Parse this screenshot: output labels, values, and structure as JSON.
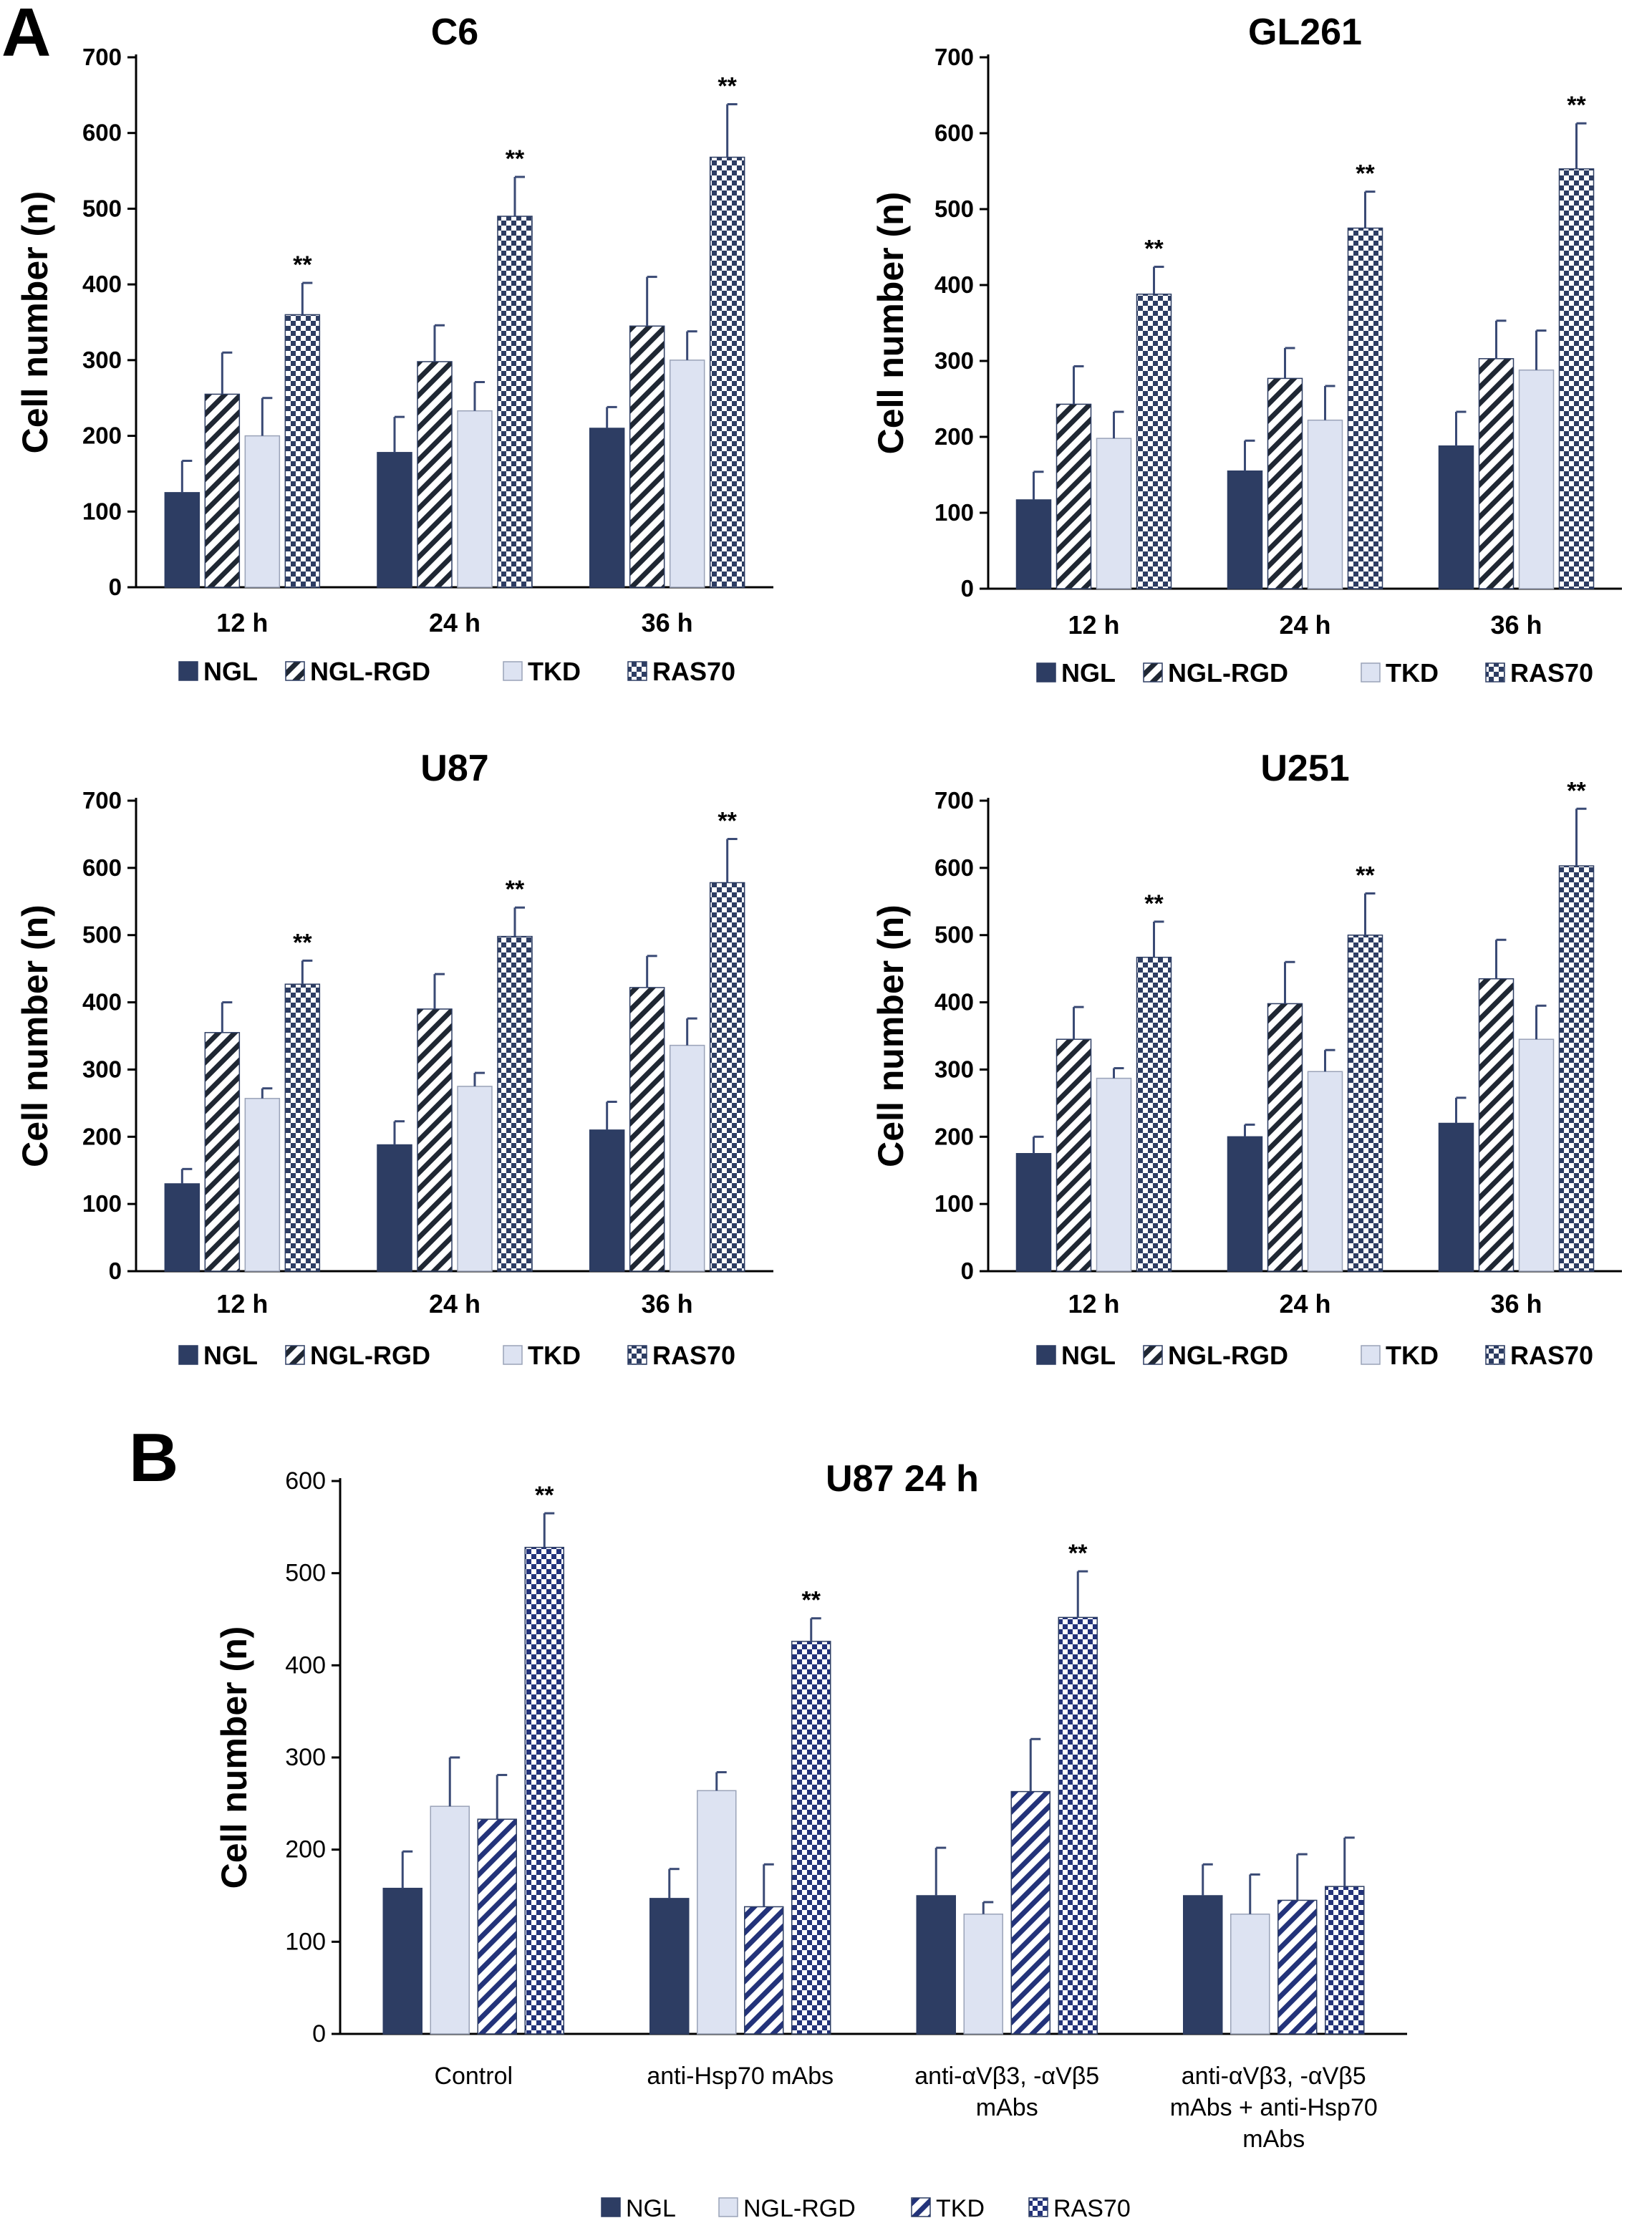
{
  "panel_labels": {
    "a": "A",
    "b": "B"
  },
  "colors": {
    "navy": "#2d3d63",
    "light": "#dde3f2",
    "pattern_blue": "#23337a",
    "axis": "#000000",
    "error": "#3a4a75"
  },
  "chart_data": [
    {
      "id": "C6",
      "panel": "A",
      "type": "bar",
      "title": "C6",
      "ylabel": "Cell number (n)",
      "ylim": [
        0,
        700
      ],
      "yticks": [
        "0",
        "100",
        "200",
        "300",
        "400",
        "500",
        "600",
        "700"
      ],
      "categories": [
        "12 h",
        "24 h",
        "36 h"
      ],
      "series": [
        {
          "name": "NGL",
          "style": "solid-navy",
          "values": [
            125,
            178,
            210
          ],
          "errors": [
            42,
            47,
            28
          ]
        },
        {
          "name": "NGL-RGD",
          "style": "diag-hatch",
          "values": [
            255,
            298,
            345
          ],
          "errors": [
            55,
            48,
            65
          ]
        },
        {
          "name": "TKD",
          "style": "light",
          "values": [
            200,
            233,
            300
          ],
          "errors": [
            50,
            38,
            38
          ]
        },
        {
          "name": "RAS70",
          "style": "checker",
          "values": [
            360,
            490,
            568
          ],
          "errors": [
            42,
            52,
            70
          ]
        }
      ],
      "significance": [
        {
          "category": 0,
          "series": 3,
          "label": "**"
        },
        {
          "category": 1,
          "series": 3,
          "label": "**"
        },
        {
          "category": 2,
          "series": 3,
          "label": "**"
        }
      ],
      "legend": [
        "NGL",
        "NGL-RGD",
        "TKD",
        "RAS70"
      ]
    },
    {
      "id": "GL261",
      "panel": "A",
      "type": "bar",
      "title": "GL261",
      "ylabel": "Cell number (n)",
      "ylim": [
        0,
        700
      ],
      "yticks": [
        "0",
        "100",
        "200",
        "300",
        "400",
        "500",
        "600",
        "700"
      ],
      "categories": [
        "12 h",
        "24 h",
        "36 h"
      ],
      "series": [
        {
          "name": "NGL",
          "style": "solid-navy",
          "values": [
            117,
            155,
            188
          ],
          "errors": [
            37,
            40,
            45
          ]
        },
        {
          "name": "NGL-RGD",
          "style": "diag-hatch",
          "values": [
            243,
            277,
            303
          ],
          "errors": [
            50,
            40,
            50
          ]
        },
        {
          "name": "TKD",
          "style": "light",
          "values": [
            198,
            222,
            288
          ],
          "errors": [
            35,
            45,
            52
          ]
        },
        {
          "name": "RAS70",
          "style": "checker",
          "values": [
            388,
            475,
            553
          ],
          "errors": [
            36,
            48,
            60
          ]
        }
      ],
      "significance": [
        {
          "category": 0,
          "series": 3,
          "label": "**"
        },
        {
          "category": 1,
          "series": 3,
          "label": "**"
        },
        {
          "category": 2,
          "series": 3,
          "label": "**"
        }
      ],
      "legend": [
        "NGL",
        "NGL-RGD",
        "TKD",
        "RAS70"
      ]
    },
    {
      "id": "U87",
      "panel": "A",
      "type": "bar",
      "title": "U87",
      "ylabel": "Cell number (n)",
      "ylim": [
        0,
        700
      ],
      "yticks": [
        "0",
        "100",
        "200",
        "300",
        "400",
        "500",
        "600",
        "700"
      ],
      "categories": [
        "12 h",
        "24 h",
        "36 h"
      ],
      "series": [
        {
          "name": "NGL",
          "style": "solid-navy",
          "values": [
            130,
            188,
            210
          ],
          "errors": [
            22,
            35,
            42
          ]
        },
        {
          "name": "NGL-RGD",
          "style": "diag-hatch",
          "values": [
            355,
            390,
            422
          ],
          "errors": [
            45,
            52,
            47
          ]
        },
        {
          "name": "TKD",
          "style": "light",
          "values": [
            257,
            275,
            336
          ],
          "errors": [
            15,
            20,
            40
          ]
        },
        {
          "name": "RAS70",
          "style": "checker",
          "values": [
            427,
            498,
            578
          ],
          "errors": [
            35,
            43,
            65
          ]
        }
      ],
      "significance": [
        {
          "category": 0,
          "series": 3,
          "label": "**"
        },
        {
          "category": 1,
          "series": 3,
          "label": "**"
        },
        {
          "category": 2,
          "series": 3,
          "label": "**"
        }
      ],
      "legend": [
        "NGL",
        "NGL-RGD",
        "TKD",
        "RAS70"
      ]
    },
    {
      "id": "U251",
      "panel": "A",
      "type": "bar",
      "title": "U251",
      "ylabel": "Cell number (n)",
      "ylim": [
        0,
        700
      ],
      "yticks": [
        "0",
        "100",
        "200",
        "300",
        "400",
        "500",
        "600",
        "700"
      ],
      "categories": [
        "12 h",
        "24 h",
        "36 h"
      ],
      "series": [
        {
          "name": "NGL",
          "style": "solid-navy",
          "values": [
            175,
            200,
            220
          ],
          "errors": [
            25,
            18,
            38
          ]
        },
        {
          "name": "NGL-RGD",
          "style": "diag-hatch",
          "values": [
            345,
            398,
            435
          ],
          "errors": [
            48,
            62,
            58
          ]
        },
        {
          "name": "TKD",
          "style": "light",
          "values": [
            287,
            297,
            345
          ],
          "errors": [
            15,
            32,
            50
          ]
        },
        {
          "name": "RAS70",
          "style": "checker",
          "values": [
            467,
            500,
            603
          ],
          "errors": [
            53,
            62,
            85
          ]
        }
      ],
      "significance": [
        {
          "category": 0,
          "series": 3,
          "label": "**"
        },
        {
          "category": 1,
          "series": 3,
          "label": "**"
        },
        {
          "category": 2,
          "series": 3,
          "label": "**"
        }
      ],
      "legend": [
        "NGL",
        "NGL-RGD",
        "TKD",
        "RAS70"
      ]
    },
    {
      "id": "U87_24h",
      "panel": "B",
      "type": "bar",
      "title": "U87   24 h",
      "ylabel": "Cell number (n)",
      "ylim": [
        0,
        600
      ],
      "yticks": [
        "0",
        "100",
        "200",
        "300",
        "400",
        "500",
        "600"
      ],
      "categories": [
        [
          "Control"
        ],
        [
          "anti-Hsp70 mAbs"
        ],
        [
          "anti-αVβ3, -αVβ5",
          "mAbs"
        ],
        [
          "anti-αVβ3, -αVβ5",
          "mAbs + anti-Hsp70",
          "mAbs"
        ]
      ],
      "series": [
        {
          "name": "NGL",
          "style": "solid-navy",
          "values": [
            158,
            147,
            150,
            150
          ],
          "errors": [
            40,
            32,
            52,
            34
          ]
        },
        {
          "name": "NGL-RGD",
          "style": "light",
          "values": [
            247,
            264,
            130,
            130
          ],
          "errors": [
            53,
            20,
            13,
            43
          ]
        },
        {
          "name": "TKD",
          "style": "diag-hatch",
          "values": [
            233,
            138,
            263,
            145
          ],
          "errors": [
            48,
            46,
            57,
            50
          ]
        },
        {
          "name": "RAS70",
          "style": "checker",
          "values": [
            528,
            426,
            452,
            160
          ],
          "errors": [
            37,
            25,
            50,
            53
          ]
        }
      ],
      "significance": [
        {
          "category": 0,
          "series": 3,
          "label": "**"
        },
        {
          "category": 1,
          "series": 3,
          "label": "**"
        },
        {
          "category": 2,
          "series": 3,
          "label": "**"
        }
      ],
      "legend": [
        "NGL",
        "NGL-RGD",
        "TKD",
        "RAS70"
      ]
    }
  ]
}
